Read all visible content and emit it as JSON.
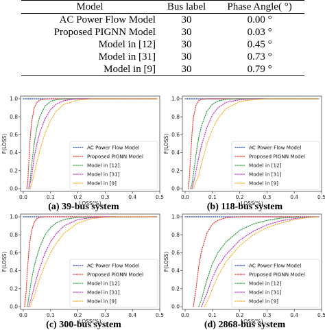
{
  "table": {
    "headers": [
      "Model",
      "Bus label",
      "Phase Angle( °)"
    ],
    "rows": [
      {
        "model": "AC Power Flow Model",
        "bus": "30",
        "angle": "0.00 °"
      },
      {
        "model": "Proposed PIGNN Model",
        "bus": "30",
        "angle": "0.03 °"
      },
      {
        "model": "Model in [12]",
        "bus": "30",
        "angle": "0.45 °"
      },
      {
        "model": "Model in [31]",
        "bus": "30",
        "angle": "0.73 °"
      },
      {
        "model": "Model in [9]",
        "bus": "30",
        "angle": "0.79 °"
      }
    ]
  },
  "series_colors": [
    "#1f3d99",
    "#e8322e",
    "#2a9a3c",
    "#c234c6",
    "#f6b229"
  ],
  "chart_data": [
    {
      "type": "line",
      "caption": "(a) 39-bus system",
      "xlabel": "LOSS(%)",
      "ylabel": "F(LOSS)",
      "xlim": [
        -0.01,
        0.5
      ],
      "ylim": [
        0.0,
        1.0
      ],
      "xticks": [
        "0.0",
        "0.1",
        "0.2",
        "0.3",
        "0.4",
        "0.5"
      ],
      "yticks": [
        "0.0",
        "0.2",
        "0.4",
        "0.6",
        "0.8",
        "1.0"
      ],
      "legend_position": "lower-right",
      "series": [
        {
          "name": "AC Power Flow Model",
          "x": [
            0.0,
            0.49
          ],
          "y": [
            1.0,
            1.0
          ]
        },
        {
          "name": "Proposed PIGNN Model",
          "x": [
            0.013,
            0.016,
            0.02,
            0.025,
            0.03,
            0.04,
            0.05,
            0.06,
            0.08,
            0.1,
            0.13,
            0.49
          ],
          "y": [
            0.0,
            0.06,
            0.28,
            0.55,
            0.73,
            0.9,
            0.96,
            0.985,
            0.997,
            1.0,
            1.0,
            1.0
          ]
        },
        {
          "name": "Model in [12]",
          "x": [
            0.02,
            0.025,
            0.03,
            0.04,
            0.05,
            0.06,
            0.08,
            0.1,
            0.12,
            0.15,
            0.49
          ],
          "y": [
            0.0,
            0.08,
            0.25,
            0.5,
            0.68,
            0.8,
            0.92,
            0.97,
            0.99,
            1.0,
            1.0
          ]
        },
        {
          "name": "Model in [31]",
          "x": [
            0.02,
            0.03,
            0.04,
            0.05,
            0.06,
            0.08,
            0.1,
            0.12,
            0.15,
            0.18,
            0.2,
            0.49
          ],
          "y": [
            0.0,
            0.12,
            0.35,
            0.5,
            0.62,
            0.78,
            0.88,
            0.94,
            0.98,
            0.995,
            1.0,
            1.0
          ]
        },
        {
          "name": "Model in [9]",
          "x": [
            0.025,
            0.035,
            0.05,
            0.06,
            0.08,
            0.1,
            0.12,
            0.15,
            0.2,
            0.25,
            0.49
          ],
          "y": [
            0.0,
            0.1,
            0.3,
            0.42,
            0.62,
            0.76,
            0.86,
            0.94,
            0.985,
            1.0,
            1.0
          ]
        }
      ]
    },
    {
      "type": "line",
      "caption": "(b) 118-bus system",
      "xlabel": "LOSS(%)",
      "ylabel": "F(LOSS)",
      "xlim": [
        -0.01,
        0.5
      ],
      "ylim": [
        0.0,
        1.0
      ],
      "xticks": [
        "0.0",
        "0.1",
        "0.2",
        "0.3",
        "0.4",
        "0.5"
      ],
      "yticks": [
        "0.0",
        "0.2",
        "0.4",
        "0.6",
        "0.8",
        "1.0"
      ],
      "legend_position": "lower-right",
      "series": [
        {
          "name": "AC Power Flow Model",
          "x": [
            0.0,
            0.49
          ],
          "y": [
            1.0,
            1.0
          ]
        },
        {
          "name": "Proposed PIGNN Model",
          "x": [
            0.012,
            0.015,
            0.02,
            0.025,
            0.03,
            0.04,
            0.05,
            0.06,
            0.08,
            0.1,
            0.49
          ],
          "y": [
            0.0,
            0.1,
            0.35,
            0.6,
            0.78,
            0.93,
            0.98,
            0.995,
            1.0,
            1.0,
            1.0
          ]
        },
        {
          "name": "Model in [12]",
          "x": [
            0.02,
            0.025,
            0.03,
            0.04,
            0.05,
            0.06,
            0.08,
            0.1,
            0.12,
            0.15,
            0.18,
            0.49
          ],
          "y": [
            0.0,
            0.05,
            0.15,
            0.38,
            0.57,
            0.7,
            0.86,
            0.94,
            0.975,
            0.995,
            1.0,
            1.0
          ]
        },
        {
          "name": "Model in [31]",
          "x": [
            0.025,
            0.035,
            0.05,
            0.06,
            0.08,
            0.1,
            0.12,
            0.15,
            0.2,
            0.25,
            0.49
          ],
          "y": [
            0.0,
            0.12,
            0.35,
            0.48,
            0.68,
            0.82,
            0.9,
            0.96,
            0.99,
            1.0,
            1.0
          ]
        },
        {
          "name": "Model in [9]",
          "x": [
            0.03,
            0.05,
            0.06,
            0.08,
            0.1,
            0.12,
            0.15,
            0.2,
            0.25,
            0.3,
            0.49
          ],
          "y": [
            0.0,
            0.15,
            0.28,
            0.5,
            0.66,
            0.78,
            0.89,
            0.97,
            0.99,
            1.0,
            1.0
          ]
        }
      ]
    },
    {
      "type": "line",
      "caption": "(c) 300-bus system",
      "xlabel": "LOSS(%)",
      "ylabel": "F(LOSS)",
      "xlim": [
        -0.01,
        0.5
      ],
      "ylim": [
        0.0,
        1.0
      ],
      "xticks": [
        "0.0",
        "0.1",
        "0.2",
        "0.3",
        "0.4",
        "0.5"
      ],
      "yticks": [
        "0.0",
        "0.2",
        "0.4",
        "0.6",
        "0.8",
        "1.0"
      ],
      "legend_position": "lower-right",
      "series": [
        {
          "name": "AC Power Flow Model",
          "x": [
            0.0,
            0.49
          ],
          "y": [
            1.0,
            1.0
          ]
        },
        {
          "name": "Proposed PIGNN Model",
          "x": [
            0.005,
            0.01,
            0.015,
            0.02,
            0.025,
            0.03,
            0.04,
            0.05,
            0.06,
            0.08,
            0.49
          ],
          "y": [
            0.0,
            0.15,
            0.4,
            0.6,
            0.74,
            0.84,
            0.94,
            0.98,
            0.995,
            1.0,
            1.0
          ]
        },
        {
          "name": "Model in [12]",
          "x": [
            0.015,
            0.02,
            0.03,
            0.04,
            0.05,
            0.06,
            0.08,
            0.1,
            0.12,
            0.15,
            0.2,
            0.49
          ],
          "y": [
            0.0,
            0.1,
            0.3,
            0.45,
            0.56,
            0.66,
            0.8,
            0.88,
            0.93,
            0.97,
            0.995,
            1.0
          ]
        },
        {
          "name": "Model in [31]",
          "x": [
            0.02,
            0.03,
            0.04,
            0.05,
            0.06,
            0.08,
            0.1,
            0.12,
            0.15,
            0.2,
            0.25,
            0.3,
            0.49
          ],
          "y": [
            0.0,
            0.1,
            0.22,
            0.33,
            0.43,
            0.6,
            0.72,
            0.81,
            0.9,
            0.97,
            0.99,
            1.0,
            1.0
          ]
        },
        {
          "name": "Model in [9]",
          "x": [
            0.025,
            0.04,
            0.05,
            0.06,
            0.08,
            0.1,
            0.12,
            0.15,
            0.2,
            0.25,
            0.3,
            0.35,
            0.49
          ],
          "y": [
            0.0,
            0.12,
            0.22,
            0.31,
            0.47,
            0.6,
            0.7,
            0.82,
            0.93,
            0.98,
            0.995,
            1.0,
            1.0
          ]
        }
      ]
    },
    {
      "type": "line",
      "caption": "(d) 2868-bus system",
      "xlabel": "LOSS(%)",
      "ylabel": "F(LOSS)",
      "xlim": [
        -0.01,
        0.5
      ],
      "ylim": [
        0.0,
        1.0
      ],
      "xticks": [
        "0.0",
        "0.1",
        "0.2",
        "0.3",
        "0.4",
        "0.5"
      ],
      "yticks": [
        "0.0",
        "0.2",
        "0.4",
        "0.6",
        "0.8",
        "1.0"
      ],
      "legend_position": "lower-right",
      "series": [
        {
          "name": "AC Power Flow Model",
          "x": [
            0.0,
            0.49
          ],
          "y": [
            1.0,
            1.0
          ]
        },
        {
          "name": "Proposed PIGNN Model",
          "x": [
            0.03,
            0.04,
            0.05,
            0.06,
            0.08,
            0.1,
            0.12,
            0.15,
            0.2,
            0.25,
            0.49
          ],
          "y": [
            0.0,
            0.2,
            0.45,
            0.62,
            0.82,
            0.92,
            0.96,
            0.99,
            1.0,
            1.0,
            1.0
          ]
        },
        {
          "name": "Model in [12]",
          "x": [
            0.05,
            0.06,
            0.08,
            0.1,
            0.12,
            0.15,
            0.2,
            0.25,
            0.3,
            0.35,
            0.4,
            0.49
          ],
          "y": [
            0.0,
            0.08,
            0.3,
            0.48,
            0.6,
            0.72,
            0.85,
            0.92,
            0.96,
            0.985,
            0.995,
            1.0
          ]
        },
        {
          "name": "Model in [31]",
          "x": [
            0.06,
            0.08,
            0.1,
            0.12,
            0.15,
            0.2,
            0.25,
            0.3,
            0.35,
            0.4,
            0.45,
            0.49
          ],
          "y": [
            0.0,
            0.15,
            0.32,
            0.45,
            0.58,
            0.74,
            0.84,
            0.91,
            0.955,
            0.98,
            0.995,
            1.0
          ]
        },
        {
          "name": "Model in [9]",
          "x": [
            0.07,
            0.08,
            0.1,
            0.12,
            0.15,
            0.2,
            0.25,
            0.3,
            0.35,
            0.4,
            0.45,
            0.49
          ],
          "y": [
            0.0,
            0.05,
            0.2,
            0.34,
            0.5,
            0.68,
            0.8,
            0.88,
            0.93,
            0.97,
            0.99,
            1.0
          ]
        }
      ]
    }
  ]
}
